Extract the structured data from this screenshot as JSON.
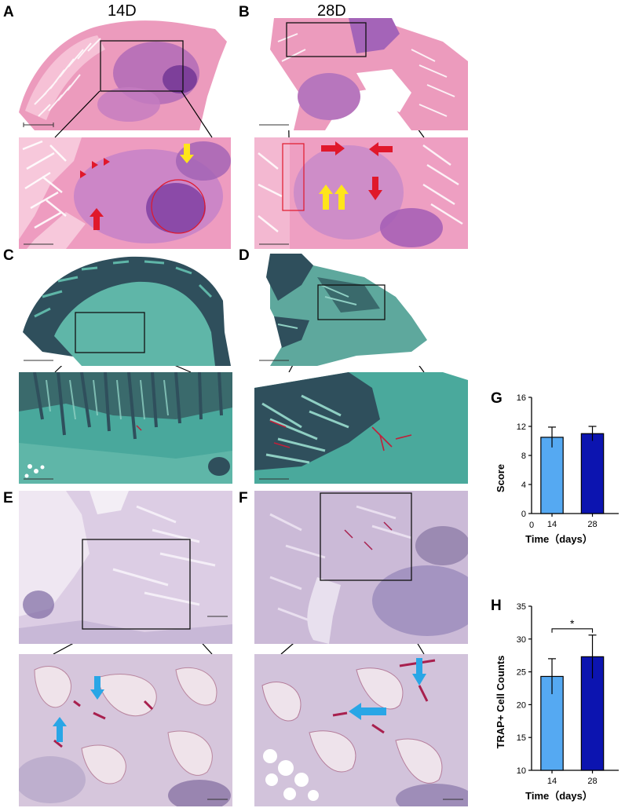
{
  "columns": {
    "left": "14D",
    "right": "28D"
  },
  "panel_labels": {
    "A": "A",
    "B": "B",
    "C": "C",
    "D": "D",
    "E": "E",
    "F": "F",
    "G": "G",
    "H": "H"
  },
  "colors": {
    "he_bg": "#ec9bbd",
    "he_dark": "#8a4aa6",
    "he_bone": "#f3b4cf",
    "safo_bg": "#49a89c",
    "safo_dark": "#2f4f5c",
    "safo_light": "#8fcfc3",
    "trap_bg": "#d2c4dc",
    "trap_dark": "#6c5a8e",
    "trap_red": "#a8204e",
    "arrow_red": "#e0182b",
    "arrow_yellow": "#ffe51a",
    "arrow_blue": "#29a6e6",
    "bar_14": "#55a9f2",
    "bar_28": "#0c14b0"
  },
  "chart_data": [
    {
      "type": "bar",
      "panel": "G",
      "categories": [
        "14",
        "28"
      ],
      "values": [
        10.5,
        11.0
      ],
      "errors": [
        1.4,
        1.0
      ],
      "colors": [
        "#55a9f2",
        "#0c14b0"
      ],
      "xlabel": "Time（days）",
      "ylabel": "Score",
      "ylim": [
        0,
        16
      ],
      "yticks": [
        "0",
        "4",
        "8",
        "12",
        "16"
      ],
      "x_origin_label": "0",
      "grid": false
    },
    {
      "type": "bar",
      "panel": "H",
      "categories": [
        "14",
        "28"
      ],
      "values": [
        24.3,
        27.3
      ],
      "errors": [
        2.7,
        3.3
      ],
      "colors": [
        "#55a9f2",
        "#0c14b0"
      ],
      "xlabel": "Time（days）",
      "ylabel": "TRAP+ Cell Counts",
      "ylim": [
        10,
        35
      ],
      "yticks": [
        "10",
        "15",
        "20",
        "25",
        "30",
        "35"
      ],
      "significance": "*",
      "grid": false
    }
  ]
}
